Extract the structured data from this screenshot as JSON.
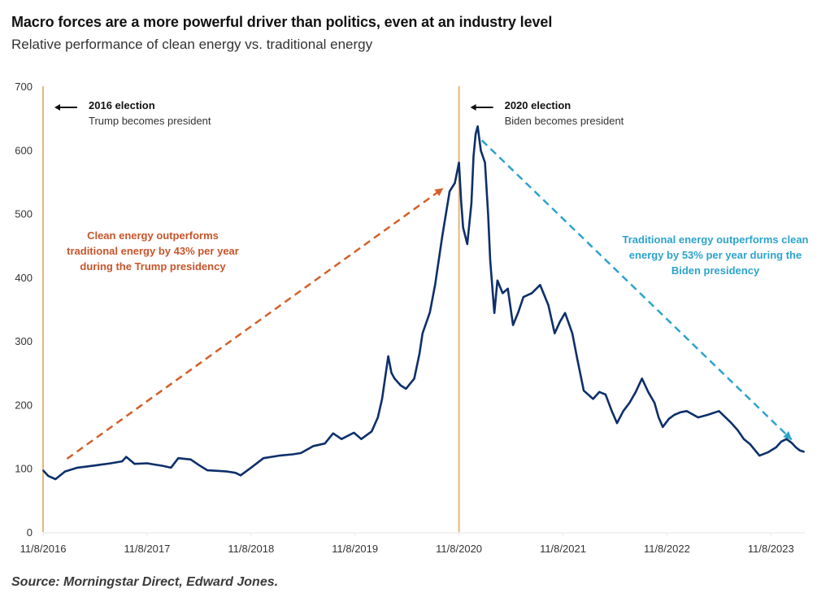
{
  "title": "Macro forces are a more powerful driver than politics, even at an industry level",
  "subtitle": "Relative performance of clean energy vs. traditional energy",
  "source": "Source: Morningstar Direct, Edward Jones.",
  "colors": {
    "line": "#0d2f6b",
    "election_line": "#e3b877",
    "trump_arrow": "#d2602a",
    "biden_arrow": "#2ca3cc",
    "trump_text": "#c8552a",
    "biden_text": "#2ca3cc"
  },
  "chart_data": {
    "type": "line",
    "title": "Relative performance of clean energy vs. traditional energy",
    "xlabel": "",
    "ylabel": "",
    "ylim": [
      0,
      700
    ],
    "yticks": [
      0,
      100,
      200,
      300,
      400,
      500,
      600,
      700
    ],
    "xlim_years_since_start": [
      0,
      7.35
    ],
    "x_tick_labels": [
      "11/8/2016",
      "11/8/2017",
      "11/8/2018",
      "11/8/2019",
      "11/8/2020",
      "11/8/2021",
      "11/8/2022",
      "11/8/2023"
    ],
    "grid": false,
    "series": [
      {
        "name": "Clean vs. traditional energy relative performance",
        "x_unit": "years since 11/8/2016",
        "points": [
          [
            0,
            97
          ],
          [
            0.05,
            88
          ],
          [
            0.12,
            83
          ],
          [
            0.21,
            95
          ],
          [
            0.33,
            101
          ],
          [
            0.52,
            105
          ],
          [
            0.65,
            108
          ],
          [
            0.76,
            111
          ],
          [
            0.8,
            118
          ],
          [
            0.88,
            107
          ],
          [
            1.0,
            108
          ],
          [
            1.07,
            106
          ],
          [
            1.15,
            104
          ],
          [
            1.23,
            101
          ],
          [
            1.3,
            116
          ],
          [
            1.42,
            114
          ],
          [
            1.5,
            105
          ],
          [
            1.58,
            97
          ],
          [
            1.68,
            96
          ],
          [
            1.77,
            95
          ],
          [
            1.85,
            93
          ],
          [
            1.9,
            89
          ],
          [
            2.0,
            101
          ],
          [
            2.12,
            116
          ],
          [
            2.27,
            120
          ],
          [
            2.4,
            122
          ],
          [
            2.48,
            124
          ],
          [
            2.6,
            135
          ],
          [
            2.71,
            139
          ],
          [
            2.79,
            155
          ],
          [
            2.87,
            146
          ],
          [
            2.99,
            156
          ],
          [
            3.06,
            146
          ],
          [
            3.16,
            158
          ],
          [
            3.22,
            180
          ],
          [
            3.26,
            209
          ],
          [
            3.32,
            276
          ],
          [
            3.35,
            250
          ],
          [
            3.38,
            241
          ],
          [
            3.44,
            230
          ],
          [
            3.49,
            225
          ],
          [
            3.57,
            241
          ],
          [
            3.62,
            280
          ],
          [
            3.65,
            312
          ],
          [
            3.72,
            345
          ],
          [
            3.77,
            388
          ],
          [
            3.84,
            465
          ],
          [
            3.91,
            535
          ],
          [
            3.96,
            548
          ],
          [
            4.0,
            580
          ],
          [
            4.02,
            520
          ],
          [
            4.04,
            478
          ],
          [
            4.08,
            452
          ],
          [
            4.12,
            516
          ],
          [
            4.14,
            590
          ],
          [
            4.16,
            625
          ],
          [
            4.18,
            637
          ],
          [
            4.21,
            599
          ],
          [
            4.25,
            580
          ],
          [
            4.28,
            500
          ],
          [
            4.3,
            427
          ],
          [
            4.34,
            344
          ],
          [
            4.37,
            395
          ],
          [
            4.42,
            375
          ],
          [
            4.47,
            382
          ],
          [
            4.52,
            325
          ],
          [
            4.57,
            345
          ],
          [
            4.62,
            369
          ],
          [
            4.7,
            375
          ],
          [
            4.78,
            388
          ],
          [
            4.86,
            356
          ],
          [
            4.92,
            312
          ],
          [
            4.97,
            330
          ],
          [
            5.02,
            344
          ],
          [
            5.09,
            312
          ],
          [
            5.14,
            270
          ],
          [
            5.2,
            222
          ],
          [
            5.29,
            209
          ],
          [
            5.35,
            220
          ],
          [
            5.41,
            216
          ],
          [
            5.47,
            190
          ],
          [
            5.52,
            171
          ],
          [
            5.58,
            190
          ],
          [
            5.64,
            203
          ],
          [
            5.7,
            220
          ],
          [
            5.76,
            241
          ],
          [
            5.82,
            220
          ],
          [
            5.88,
            203
          ],
          [
            5.92,
            180
          ],
          [
            5.96,
            165
          ],
          [
            6.02,
            178
          ],
          [
            6.07,
            184
          ],
          [
            6.13,
            188
          ],
          [
            6.19,
            190
          ],
          [
            6.3,
            180
          ],
          [
            6.39,
            184
          ],
          [
            6.5,
            190
          ],
          [
            6.62,
            171
          ],
          [
            6.68,
            160
          ],
          [
            6.74,
            146
          ],
          [
            6.8,
            138
          ],
          [
            6.89,
            120
          ],
          [
            6.97,
            125
          ],
          [
            7.05,
            133
          ],
          [
            7.1,
            142
          ],
          [
            7.15,
            146
          ],
          [
            7.2,
            140
          ],
          [
            7.24,
            133
          ],
          [
            7.28,
            128
          ],
          [
            7.32,
            126
          ]
        ]
      }
    ],
    "vertical_markers": [
      {
        "x_label": "11/8/2016",
        "x": 0,
        "heading": "2016 election",
        "text": "Trump becomes president"
      },
      {
        "x_label": "11/8/2020",
        "x": 4.0,
        "heading": "2020 election",
        "text": "Biden becomes president"
      }
    ],
    "annotations": [
      {
        "name": "trump-period",
        "lines": [
          "Clean energy outperforms",
          "traditional energy by 43% per year",
          "during the Trump presidency"
        ],
        "arrow_from": [
          0.23,
          115
        ],
        "arrow_to": [
          3.85,
          540
        ]
      },
      {
        "name": "biden-period",
        "lines": [
          "Traditional energy outperforms clean",
          "energy by 53% per year during the",
          "Biden presidency"
        ],
        "arrow_from": [
          4.22,
          615
        ],
        "arrow_to": [
          7.2,
          145
        ]
      }
    ]
  }
}
